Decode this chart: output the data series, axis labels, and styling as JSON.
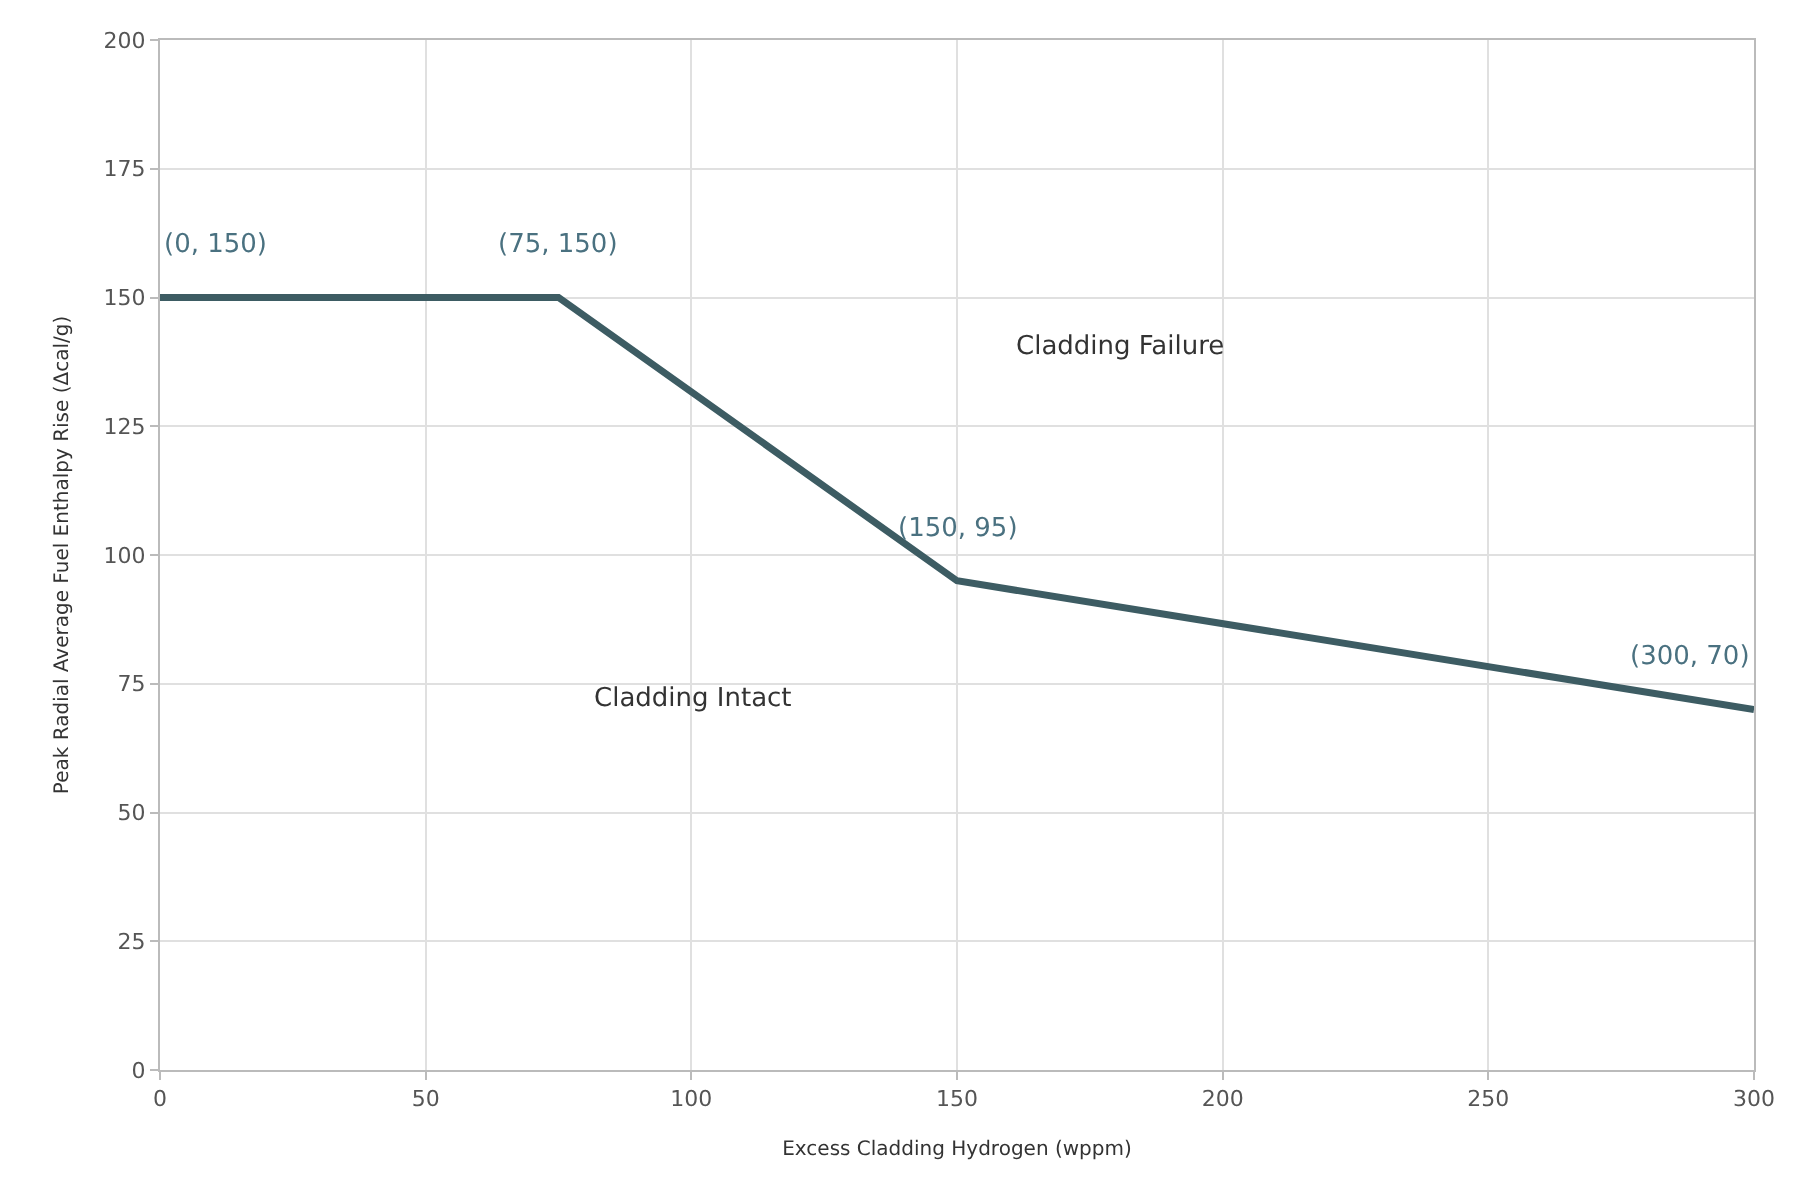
{
  "chart_data": {
    "type": "line",
    "xlabel": "Excess Cladding Hydrogen (wppm)",
    "ylabel": "Peak Radial Average Fuel Enthalpy Rise (Δcal/g)",
    "x": [
      0,
      75,
      150,
      300
    ],
    "series": [
      {
        "color": "#3d5c63",
        "values": [
          150,
          150,
          95,
          70
        ]
      }
    ],
    "xlim": [
      0,
      300
    ],
    "xticks": [
      0,
      50,
      100,
      150,
      200,
      250,
      300
    ],
    "ylim": [
      0,
      200
    ],
    "yticks": [
      0,
      25,
      50,
      75,
      100,
      125,
      150,
      175,
      200
    ],
    "grid": true,
    "marker": "none",
    "line_style": "solid",
    "annotations": [
      {
        "text": "(0, 150)",
        "x": 0,
        "y": 150
      },
      {
        "text": "(75, 150)",
        "x": 75,
        "y": 150
      },
      {
        "text": "(150, 95)",
        "x": 150,
        "y": 95
      },
      {
        "text": "(300, 70)",
        "x": 300,
        "y": 70
      },
      "Cladding Failure",
      "Cladding Intact"
    ]
  }
}
